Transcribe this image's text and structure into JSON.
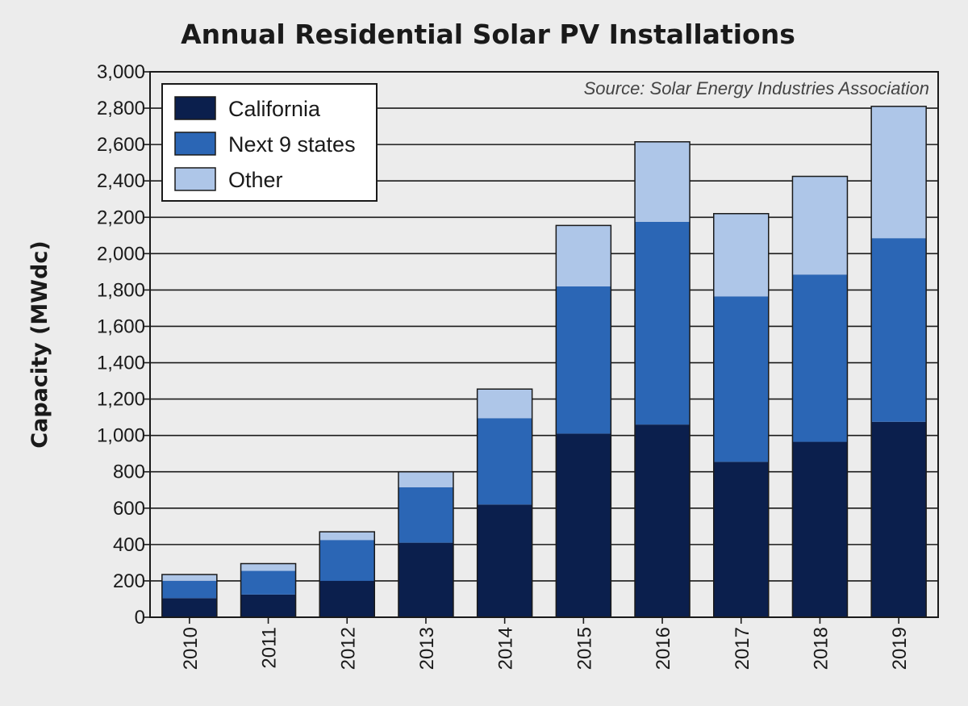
{
  "chart_data": {
    "type": "bar",
    "stacked": true,
    "title": "Annual Residential Solar PV Installations",
    "ylabel": "Capacity (MWdc)",
    "xlabel": "",
    "source": "Source: Solar Energy Industries Association",
    "ylim": [
      0,
      3000
    ],
    "yticks": [
      0,
      200,
      400,
      600,
      800,
      1000,
      1200,
      1400,
      1600,
      1800,
      2000,
      2200,
      2400,
      2600,
      2800,
      3000
    ],
    "ytick_labels": [
      "0",
      "200",
      "400",
      "600",
      "800",
      "1,000",
      "1,200",
      "1,400",
      "1,600",
      "1,800",
      "2,000",
      "2,200",
      "2,400",
      "2,600",
      "2,800",
      "3,000"
    ],
    "categories": [
      "2010",
      "2011",
      "2012",
      "2013",
      "2014",
      "2015",
      "2016",
      "2017",
      "2018",
      "2019"
    ],
    "series": [
      {
        "name": "California",
        "color": "#0b1f4d",
        "values": [
          105,
          125,
          200,
          410,
          620,
          1010,
          1060,
          855,
          965,
          1075
        ]
      },
      {
        "name": "Next 9 states",
        "color": "#2b66b5",
        "values": [
          95,
          130,
          225,
          305,
          475,
          810,
          1115,
          910,
          920,
          1010
        ]
      },
      {
        "name": "Other",
        "color": "#aec6e8",
        "values": [
          35,
          40,
          45,
          85,
          160,
          335,
          440,
          455,
          540,
          725
        ]
      }
    ],
    "legend": "top-left",
    "grid": true
  }
}
